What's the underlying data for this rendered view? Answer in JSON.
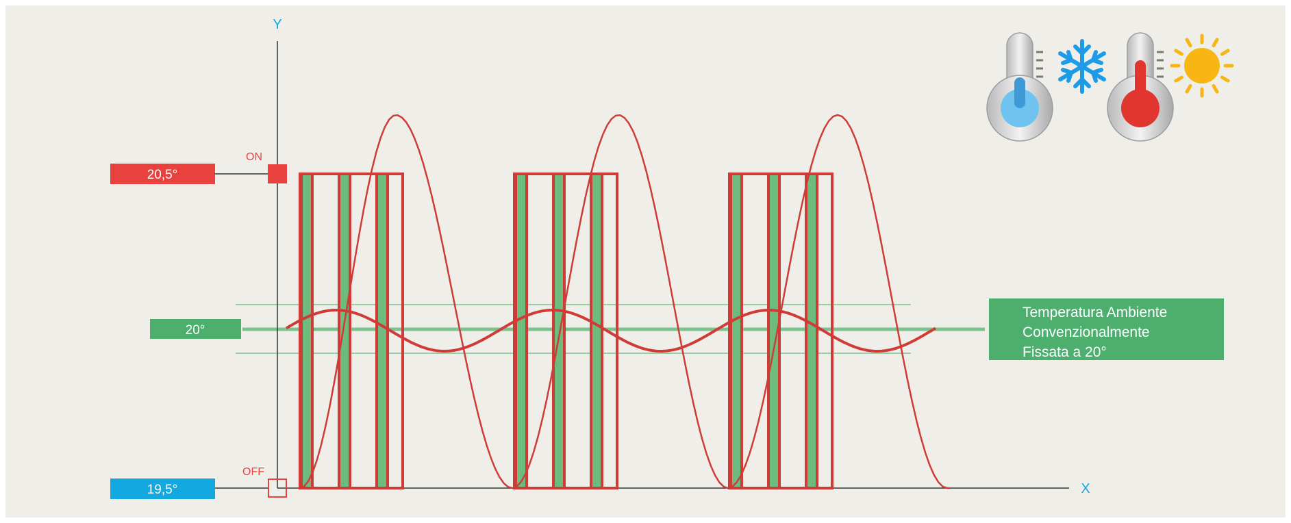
{
  "axes": {
    "y_label": "Y",
    "x_label": "X"
  },
  "levels": {
    "on": {
      "value_label": "20,5°",
      "state_label": "ON",
      "color": "#e8413e"
    },
    "setpoint": {
      "value_label": "20°",
      "color": "#4caf6e"
    },
    "off": {
      "value_label": "19,5°",
      "state_label": "OFF",
      "color": "#13a8e0"
    }
  },
  "annotation": {
    "lines": [
      "Temperatura Ambiente",
      "Convenzionalmente",
      "Fissata a 20°"
    ],
    "color": "#4caf6e"
  },
  "icons": [
    {
      "name": "thermometer-cold-icon",
      "symbol": "snowflake-icon"
    },
    {
      "name": "thermometer-hot-icon",
      "symbol": "sun-icon"
    }
  ],
  "colors": {
    "curve": "#cf3c37",
    "pulse_fill": "#6dbb7d",
    "axis": "#333333",
    "axis_label": "#13a8e0"
  }
}
